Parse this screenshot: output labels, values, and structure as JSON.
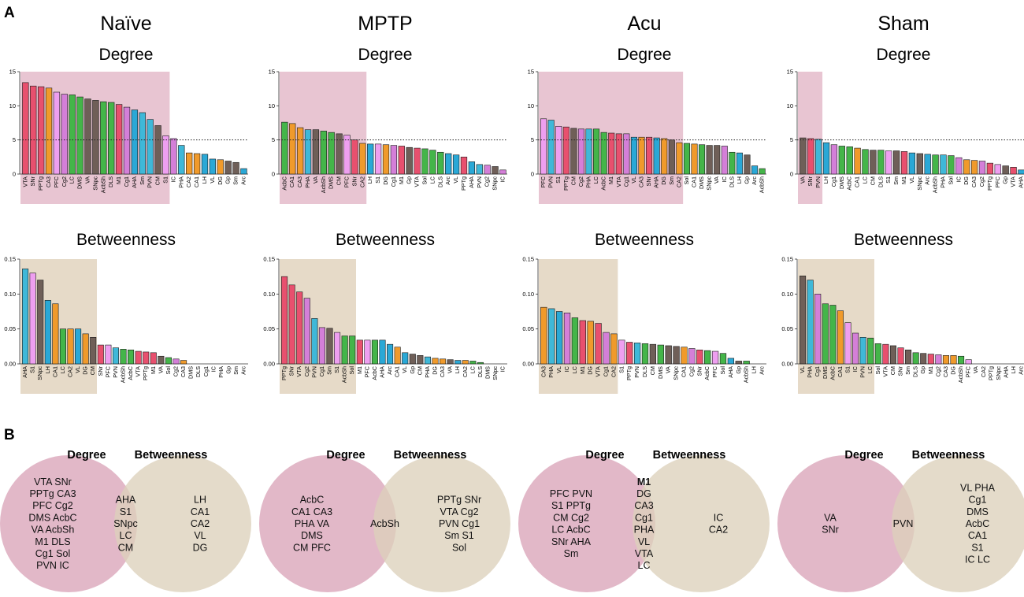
{
  "panel_labels": {
    "a": "A",
    "b": "B"
  },
  "colors": {
    "degree_shade": "#e8c5d2",
    "betweenness_shade": "#e6dac8",
    "venn_degree": "#dfb0c2",
    "venn_betweenness": "#ddd1bb",
    "dotted_line": "#222222",
    "palette": [
      "#e8506e",
      "#e8506e",
      "#e8506e",
      "#f09a2b",
      "#ee9ff0",
      "#d47fd8",
      "#44b549",
      "#3fb8d8",
      "#2aa8d6",
      "#6f5f58",
      "#f05a7a"
    ]
  },
  "groups": [
    "Naïve",
    "MPTP",
    "Acu",
    "Sham"
  ],
  "chart_titles": {
    "degree": "Degree",
    "betweenness": "Betweenness"
  },
  "degree_threshold": 5,
  "chart_data": [
    {
      "type": "bar",
      "group": "Naïve",
      "metric": "Degree",
      "title": "Degree",
      "ylim": [
        0,
        15
      ],
      "yticks": [
        "0",
        "5",
        "10",
        "15"
      ],
      "shaded_count": 19,
      "categories": [
        "VTA",
        "SNr",
        "PPTg",
        "CA3",
        "PFC",
        "Cg2",
        "LC",
        "DMS",
        "VA",
        "SNpc",
        "AcbSh",
        "DLS",
        "M1",
        "Cg1",
        "AHA",
        "Sm",
        "PVN",
        "CM",
        "S1",
        "IC",
        "PHA",
        "CA2",
        "CA1",
        "LH",
        "VL",
        "DG",
        "Gp",
        "Sm",
        "Arc"
      ],
      "values": [
        13.4,
        12.9,
        12.8,
        12.6,
        12.0,
        11.7,
        11.6,
        11.3,
        11.0,
        10.8,
        10.6,
        10.5,
        10.2,
        9.8,
        9.4,
        9.0,
        8.0,
        7.1,
        5.6,
        5.2,
        4.2,
        3.1,
        3.0,
        2.9,
        2.2,
        2.1,
        1.9,
        1.7,
        0.8
      ],
      "colors": [
        "#e8506e",
        "#e8506e",
        "#e8506e",
        "#f09a2b",
        "#ee9ff0",
        "#d47fd8",
        "#44b549",
        "#44b549",
        "#6f5f58",
        "#6f5f58",
        "#44b549",
        "#44b549",
        "#e8506e",
        "#d47fd8",
        "#2aa8d6",
        "#3fb8d8",
        "#3fb8d8",
        "#6f5f58",
        "#ee9ff0",
        "#d47fd8",
        "#3fb8d8",
        "#f09a2b",
        "#f09a2b",
        "#2aa8d6",
        "#2aa8d6",
        "#f09a2b",
        "#6f5f58",
        "#6f5f58",
        "#2aa8d6"
      ]
    },
    {
      "type": "bar",
      "group": "MPTP",
      "metric": "Degree",
      "title": "Degree",
      "ylim": [
        0,
        15
      ],
      "yticks": [
        "0",
        "5",
        "10",
        "15"
      ],
      "shaded_count": 11,
      "categories": [
        "AcbC",
        "CA1",
        "CA3",
        "PHA",
        "VA",
        "AcbSh",
        "DMS",
        "CM",
        "PFC",
        "SNr",
        "CA2",
        "LH",
        "S1",
        "DG",
        "Cg1",
        "M1",
        "Gp",
        "VTA",
        "Sol",
        "LC",
        "DLS",
        "Arc",
        "VL",
        "PPTg",
        "AHA",
        "PVN",
        "Cg2",
        "SNpc",
        "IC"
      ],
      "values": [
        7.6,
        7.4,
        6.8,
        6.5,
        6.5,
        6.3,
        6.1,
        5.9,
        5.7,
        5.0,
        4.5,
        4.4,
        4.4,
        4.3,
        4.2,
        4.1,
        3.9,
        3.8,
        3.7,
        3.5,
        3.2,
        3.0,
        2.8,
        2.5,
        1.8,
        1.4,
        1.3,
        1.1,
        0.6
      ],
      "colors": [
        "#44b549",
        "#f09a2b",
        "#f09a2b",
        "#3fb8d8",
        "#6f5f58",
        "#44b549",
        "#44b549",
        "#6f5f58",
        "#ee9ff0",
        "#e8506e",
        "#f09a2b",
        "#2aa8d6",
        "#ee9ff0",
        "#f09a2b",
        "#d47fd8",
        "#e8506e",
        "#6f5f58",
        "#e8506e",
        "#44b549",
        "#44b549",
        "#44b549",
        "#2aa8d6",
        "#2aa8d6",
        "#e8506e",
        "#2aa8d6",
        "#3fb8d8",
        "#d47fd8",
        "#6f5f58",
        "#d47fd8"
      ]
    },
    {
      "type": "bar",
      "group": "Acu",
      "metric": "Degree",
      "title": "Degree",
      "ylim": [
        0,
        15
      ],
      "yticks": [
        "0",
        "5",
        "10",
        "15"
      ],
      "shaded_count": 19,
      "categories": [
        "PFC",
        "PVN",
        "S1",
        "PPTg",
        "CM",
        "Cg2",
        "PHA",
        "LC",
        "AcbC",
        "M1",
        "VTA",
        "Cg1",
        "VL",
        "CA3",
        "SNr",
        "AHA",
        "DG",
        "Sm",
        "CA2",
        "Sol",
        "CA1",
        "DMS",
        "SNpc",
        "VA",
        "IC",
        "DLS",
        "LH",
        "Gp",
        "Arc",
        "AcbSh"
      ],
      "values": [
        8.1,
        7.9,
        7.0,
        6.9,
        6.7,
        6.6,
        6.6,
        6.6,
        6.1,
        6.0,
        5.9,
        5.9,
        5.4,
        5.4,
        5.4,
        5.3,
        5.2,
        5.0,
        4.6,
        4.5,
        4.4,
        4.3,
        4.2,
        4.2,
        4.1,
        3.2,
        3.1,
        2.8,
        1.2,
        0.8
      ],
      "colors": [
        "#ee9ff0",
        "#3fb8d8",
        "#ee9ff0",
        "#e8506e",
        "#6f5f58",
        "#d47fd8",
        "#3fb8d8",
        "#44b549",
        "#44b549",
        "#e8506e",
        "#e8506e",
        "#d47fd8",
        "#2aa8d6",
        "#f09a2b",
        "#e8506e",
        "#2aa8d6",
        "#f09a2b",
        "#6f5f58",
        "#f09a2b",
        "#44b549",
        "#f09a2b",
        "#44b549",
        "#6f5f58",
        "#6f5f58",
        "#d47fd8",
        "#44b549",
        "#2aa8d6",
        "#6f5f58",
        "#2aa8d6",
        "#44b549"
      ]
    },
    {
      "type": "bar",
      "group": "Sham",
      "metric": "Degree",
      "title": "Degree",
      "ylim": [
        0,
        15
      ],
      "yticks": [
        "0",
        "5",
        "10",
        "15"
      ],
      "shaded_count": 3,
      "categories": [
        "VA",
        "SNr",
        "PVN",
        "LH",
        "Cg1",
        "DMS",
        "AcbC",
        "CA1",
        "LC",
        "CM",
        "DLS",
        "S1",
        "Sm",
        "M1",
        "VL",
        "SNpc",
        "Arc",
        "AcbSh",
        "PHA",
        "Sol",
        "IC",
        "DG",
        "CA3",
        "Cg2",
        "PPTg",
        "PFC",
        "Gp",
        "VTA",
        "AHA"
      ],
      "values": [
        5.3,
        5.2,
        5.1,
        4.6,
        4.3,
        4.1,
        4.0,
        3.8,
        3.6,
        3.5,
        3.5,
        3.4,
        3.4,
        3.3,
        3.1,
        3.0,
        2.9,
        2.8,
        2.8,
        2.7,
        2.4,
        2.1,
        2.0,
        1.9,
        1.6,
        1.4,
        1.2,
        1.0,
        0.6
      ],
      "colors": [
        "#6f5f58",
        "#e8506e",
        "#3fb8d8",
        "#2aa8d6",
        "#d47fd8",
        "#44b549",
        "#44b549",
        "#f09a2b",
        "#44b549",
        "#6f5f58",
        "#44b549",
        "#ee9ff0",
        "#6f5f58",
        "#e8506e",
        "#2aa8d6",
        "#6f5f58",
        "#2aa8d6",
        "#44b549",
        "#3fb8d8",
        "#44b549",
        "#d47fd8",
        "#f09a2b",
        "#f09a2b",
        "#d47fd8",
        "#e8506e",
        "#ee9ff0",
        "#6f5f58",
        "#e8506e",
        "#2aa8d6"
      ]
    },
    {
      "type": "bar",
      "group": "Naïve",
      "metric": "Betweenness",
      "title": "Betweenness",
      "ylim": [
        0,
        0.15
      ],
      "yticks": [
        "0.00",
        "0.05",
        "0.10",
        "0.15"
      ],
      "shaded_count": 10,
      "categories": [
        "AHA",
        "S1",
        "SNpc",
        "LH",
        "CA1",
        "LC",
        "CA2",
        "VL",
        "DG",
        "CM",
        "SNr",
        "PFC",
        "PVN",
        "AcbSh",
        "AcbC",
        "VTA",
        "PPTg",
        "M1",
        "VA",
        "Sol",
        "Cg2",
        "CA3",
        "DMS",
        "DLS",
        "Cg1",
        "IC",
        "PHA",
        "Gp",
        "Sm",
        "Arc"
      ],
      "values": [
        0.136,
        0.13,
        0.12,
        0.091,
        0.086,
        0.05,
        0.05,
        0.05,
        0.043,
        0.038,
        0.027,
        0.027,
        0.023,
        0.021,
        0.02,
        0.018,
        0.017,
        0.016,
        0.011,
        0.009,
        0.007,
        0.005,
        0,
        0,
        0,
        0,
        0,
        0,
        0,
        0
      ],
      "colors": [
        "#3fb8d8",
        "#ee9ff0",
        "#6f5f58",
        "#2aa8d6",
        "#f09a2b",
        "#44b549",
        "#f09a2b",
        "#2aa8d6",
        "#f09a2b",
        "#6f5f58",
        "#e8506e",
        "#ee9ff0",
        "#3fb8d8",
        "#44b549",
        "#44b549",
        "#e8506e",
        "#e8506e",
        "#e8506e",
        "#6f5f58",
        "#44b549",
        "#d47fd8",
        "#f09a2b",
        "#44b549",
        "#44b549",
        "#d47fd8",
        "#d47fd8",
        "#3fb8d8",
        "#6f5f58",
        "#6f5f58",
        "#2aa8d6"
      ]
    },
    {
      "type": "bar",
      "group": "MPTP",
      "metric": "Betweenness",
      "title": "Betweenness",
      "ylim": [
        0,
        0.15
      ],
      "yticks": [
        "0.00",
        "0.05",
        "0.10",
        "0.15"
      ],
      "shaded_count": 10,
      "categories": [
        "PPTg",
        "SNr",
        "VTA",
        "Cg2",
        "PVN",
        "Cg1",
        "Sm",
        "S1",
        "AcbSh",
        "Sol",
        "M1",
        "PFC",
        "AcbC",
        "AHA",
        "Arc",
        "CA1",
        "VL",
        "Gp",
        "CM",
        "PHA",
        "DG",
        "CA3",
        "VA",
        "LH",
        "CA2",
        "LC",
        "DLS",
        "DMS",
        "SNpc",
        "IC"
      ],
      "values": [
        0.125,
        0.113,
        0.103,
        0.094,
        0.065,
        0.052,
        0.051,
        0.045,
        0.04,
        0.04,
        0.034,
        0.034,
        0.034,
        0.034,
        0.028,
        0.024,
        0.016,
        0.014,
        0.012,
        0.01,
        0.008,
        0.007,
        0.006,
        0.005,
        0.005,
        0.004,
        0.002,
        0,
        0,
        0
      ],
      "colors": [
        "#e8506e",
        "#e8506e",
        "#e8506e",
        "#d47fd8",
        "#3fb8d8",
        "#d47fd8",
        "#6f5f58",
        "#ee9ff0",
        "#44b549",
        "#44b549",
        "#e8506e",
        "#ee9ff0",
        "#44b549",
        "#2aa8d6",
        "#2aa8d6",
        "#f09a2b",
        "#2aa8d6",
        "#6f5f58",
        "#6f5f58",
        "#3fb8d8",
        "#f09a2b",
        "#f09a2b",
        "#6f5f58",
        "#2aa8d6",
        "#f09a2b",
        "#44b549",
        "#44b549",
        "#44b549",
        "#6f5f58",
        "#d47fd8"
      ]
    },
    {
      "type": "bar",
      "group": "Acu",
      "metric": "Betweenness",
      "title": "Betweenness",
      "ylim": [
        0,
        0.15
      ],
      "yticks": [
        "0.00",
        "0.05",
        "0.10",
        "0.15"
      ],
      "shaded_count": 10,
      "categories": [
        "CA3",
        "PHA",
        "VL",
        "IC",
        "LC",
        "M1",
        "DG",
        "VTA",
        "Cg1",
        "CA2",
        "S1",
        "PPTg",
        "PVN",
        "DLS",
        "CM",
        "DMS",
        "VA",
        "SNpc",
        "CA1",
        "Cg2",
        "SNr",
        "AcbC",
        "PFC",
        "Sol",
        "AHA",
        "Gp",
        "AcbSh",
        "LH",
        "Arc"
      ],
      "values": [
        0.081,
        0.079,
        0.075,
        0.073,
        0.066,
        0.062,
        0.061,
        0.058,
        0.045,
        0.043,
        0.034,
        0.031,
        0.03,
        0.029,
        0.028,
        0.027,
        0.026,
        0.025,
        0.024,
        0.022,
        0.02,
        0.019,
        0.018,
        0.015,
        0.008,
        0.004,
        0.004,
        0,
        0
      ],
      "colors": [
        "#f09a2b",
        "#3fb8d8",
        "#2aa8d6",
        "#d47fd8",
        "#44b549",
        "#e8506e",
        "#f09a2b",
        "#e8506e",
        "#d47fd8",
        "#f09a2b",
        "#ee9ff0",
        "#e8506e",
        "#3fb8d8",
        "#44b549",
        "#6f5f58",
        "#44b549",
        "#6f5f58",
        "#6f5f58",
        "#f09a2b",
        "#d47fd8",
        "#e8506e",
        "#44b549",
        "#ee9ff0",
        "#44b549",
        "#2aa8d6",
        "#6f5f58",
        "#44b549",
        "#2aa8d6",
        "#2aa8d6"
      ]
    },
    {
      "type": "bar",
      "group": "Sham",
      "metric": "Betweenness",
      "title": "Betweenness",
      "ylim": [
        0,
        0.15
      ],
      "yticks": [
        "0.00",
        "0.05",
        "0.10",
        "0.15"
      ],
      "shaded_count": 10,
      "categories": [
        "VL",
        "PHA",
        "Cg1",
        "DMS",
        "AcbC",
        "CA1",
        "S1",
        "IC",
        "PVN",
        "LC",
        "Sol",
        "VTA",
        "CM",
        "SNr",
        "Sm",
        "DLS",
        "Gp",
        "M1",
        "Cg2",
        "CA3",
        "DG",
        "AcbSh",
        "PFC",
        "VA",
        "CA2",
        "PPTg",
        "SNpc",
        "AHA",
        "LH",
        "Arc"
      ],
      "values": [
        0.126,
        0.12,
        0.1,
        0.086,
        0.084,
        0.076,
        0.059,
        0.044,
        0.038,
        0.037,
        0.029,
        0.028,
        0.026,
        0.023,
        0.02,
        0.016,
        0.015,
        0.014,
        0.013,
        0.012,
        0.012,
        0.011,
        0.006,
        0,
        0,
        0,
        0,
        0,
        0,
        0
      ],
      "colors": [
        "#6f5f58",
        "#3fb8d8",
        "#d47fd8",
        "#44b549",
        "#44b549",
        "#f09a2b",
        "#ee9ff0",
        "#d47fd8",
        "#3fb8d8",
        "#44b549",
        "#44b549",
        "#e8506e",
        "#6f5f58",
        "#e8506e",
        "#6f5f58",
        "#44b549",
        "#6f5f58",
        "#e8506e",
        "#d47fd8",
        "#f09a2b",
        "#f09a2b",
        "#44b549",
        "#ee9ff0",
        "#6f5f58",
        "#f09a2b",
        "#e8506e",
        "#6f5f58",
        "#2aa8d6",
        "#2aa8d6",
        "#2aa8d6"
      ]
    }
  ],
  "venn": [
    {
      "degree_label": "Degree",
      "betweenness_label": "Betweenness",
      "degree_only": [
        "VTA SNr",
        "PPTg CA3",
        "PFC Cg2",
        "DMS  AcbC",
        "VA AcbSh",
        "M1 DLS",
        "Cg1 Sol",
        "PVN IC"
      ],
      "both": [
        "AHA",
        "S1",
        "SNpc",
        "LC",
        "CM"
      ],
      "both_bold": [],
      "betweenness_only": [
        "LH",
        "CA1",
        "CA2",
        "VL",
        "DG"
      ]
    },
    {
      "degree_label": "Degree",
      "betweenness_label": "Betweenness",
      "degree_only": [
        "AcbC",
        "CA1 CA3",
        "PHA VA",
        "DMS",
        "CM PFC"
      ],
      "both": [
        "AcbSh"
      ],
      "both_bold": [],
      "betweenness_only": [
        "PPTg SNr",
        "VTA Cg2",
        "PVN Cg1",
        "Sm S1",
        "Sol"
      ]
    },
    {
      "degree_label": "Degree",
      "betweenness_label": "Betweenness",
      "degree_only": [
        "PFC PVN",
        "S1 PPTg",
        "CM Cg2",
        "LC AcbC",
        "SNr AHA",
        "Sm"
      ],
      "both": [
        "M1",
        "DG",
        "CA3",
        "Cg1",
        "PHA",
        "VL",
        "VTA",
        "LC"
      ],
      "both_bold": [
        0
      ],
      "betweenness_only": [
        "IC",
        "CA2"
      ]
    },
    {
      "degree_label": "Degree",
      "betweenness_label": "Betweenness",
      "degree_only": [
        "VA",
        "SNr"
      ],
      "both": [
        "PVN"
      ],
      "both_bold": [],
      "betweenness_only": [
        "VL PHA",
        "Cg1",
        "DMS",
        "AcbC",
        "CA1",
        "S1",
        "IC LC"
      ]
    }
  ]
}
